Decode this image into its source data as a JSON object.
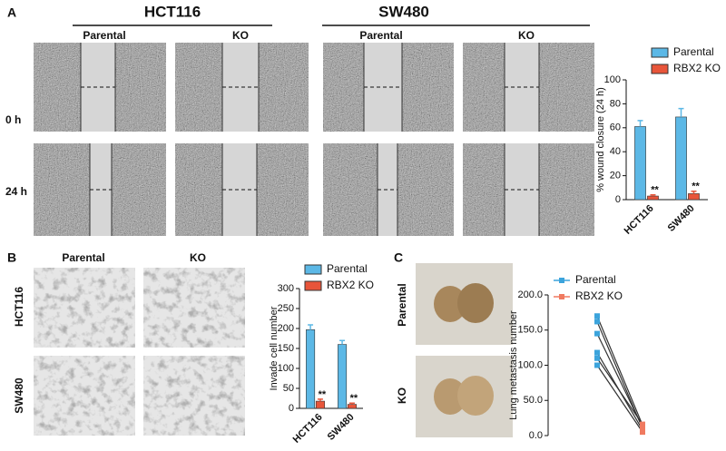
{
  "figure": {
    "panel_a": {
      "label": "A",
      "groups": [
        "HCT116",
        "SW480"
      ],
      "columns": [
        "Parental",
        "KO",
        "Parental",
        "KO"
      ],
      "rows": [
        "0 h",
        "24 h"
      ]
    },
    "panel_b": {
      "label": "B",
      "columns": [
        "Parental",
        "KO"
      ],
      "rows": [
        "HCT116",
        "SW480"
      ]
    },
    "panel_c": {
      "label": "C",
      "rows": [
        "Parental",
        "KO"
      ]
    }
  },
  "chart_data": [
    {
      "type": "bar",
      "ylabel": "% wound closure (24 h)",
      "categories": [
        "HCT116",
        "SW480"
      ],
      "series": [
        {
          "name": "Parental",
          "color": "#5cb8e6",
          "values": [
            61,
            69
          ],
          "errors": [
            5,
            7
          ]
        },
        {
          "name": "RBX2 KO",
          "color": "#e8553a",
          "values": [
            3,
            5
          ],
          "errors": [
            1,
            2
          ],
          "significance": [
            "**",
            "**"
          ]
        }
      ],
      "ylim": [
        0,
        100
      ],
      "yticks": [
        0,
        20,
        40,
        60,
        80,
        100
      ]
    },
    {
      "type": "bar",
      "ylabel": "Invade cell number",
      "categories": [
        "HCT116",
        "SW480"
      ],
      "series": [
        {
          "name": "Parental",
          "color": "#5cb8e6",
          "values": [
            197,
            160
          ],
          "errors": [
            12,
            10
          ]
        },
        {
          "name": "RBX2 KO",
          "color": "#e8553a",
          "values": [
            18,
            10
          ],
          "errors": [
            5,
            3
          ],
          "significance": [
            "**",
            "**"
          ]
        }
      ],
      "ylim": [
        0,
        300
      ],
      "yticks": [
        0,
        50,
        100,
        150,
        200,
        250,
        300
      ]
    },
    {
      "type": "paired",
      "ylabel": "Lung metastasis number",
      "series": [
        {
          "name": "Parental",
          "color": "#3ca4dc",
          "values": [
            170,
            162,
            145,
            118,
            110,
            100
          ]
        },
        {
          "name": "RBX2 KO",
          "color": "#f07a60",
          "values": [
            15,
            10,
            12,
            8,
            16,
            5
          ]
        }
      ],
      "ylim": [
        0,
        200
      ],
      "yticks": [
        {
          "value": 0,
          "label": "0.0"
        },
        {
          "value": 50,
          "label": "50.0"
        },
        {
          "value": 100,
          "label": "100.0"
        },
        {
          "value": 150,
          "label": "150.0"
        },
        {
          "value": 200,
          "label": "200.0"
        }
      ]
    }
  ]
}
